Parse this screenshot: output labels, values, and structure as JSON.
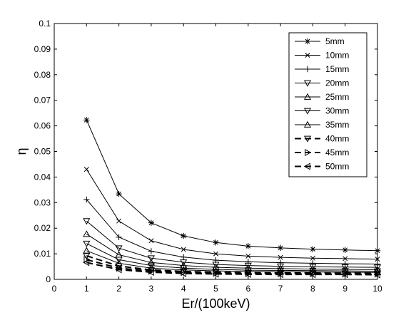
{
  "chart_data": {
    "type": "line",
    "xlabel": "Er/(100keV)",
    "ylabel": "η",
    "xlim": [
      0,
      10
    ],
    "ylim": [
      0,
      0.1
    ],
    "xticks": [
      "0",
      "1",
      "2",
      "3",
      "4",
      "5",
      "6",
      "7",
      "8",
      "9",
      "10"
    ],
    "yticks": [
      "0",
      "0.01",
      "0.02",
      "0.03",
      "0.04",
      "0.05",
      "0.06",
      "0.07",
      "0.08",
      "0.09",
      "0.1"
    ],
    "grid": false,
    "legend_position": "top-right",
    "x": [
      1,
      2,
      3,
      4,
      5,
      6,
      7,
      8,
      9,
      10
    ],
    "series": [
      {
        "name": "5mm",
        "marker": "asterisk",
        "values": [
          0.0623,
          0.0334,
          0.0221,
          0.017,
          0.0144,
          0.013,
          0.0123,
          0.0118,
          0.0115,
          0.0112
        ]
      },
      {
        "name": "10mm",
        "marker": "x",
        "values": [
          0.043,
          0.0228,
          0.0151,
          0.0117,
          0.01,
          0.0091,
          0.0086,
          0.0083,
          0.0081,
          0.0079
        ]
      },
      {
        "name": "15mm",
        "marker": "plus",
        "values": [
          0.0312,
          0.0165,
          0.011,
          0.0087,
          0.0075,
          0.0069,
          0.0065,
          0.0063,
          0.0061,
          0.006
        ]
      },
      {
        "name": "20mm",
        "marker": "triangle-down",
        "values": [
          0.0228,
          0.0122,
          0.0083,
          0.0067,
          0.0058,
          0.0054,
          0.0051,
          0.0049,
          0.0048,
          0.0047
        ]
      },
      {
        "name": "25mm",
        "marker": "triangle-up",
        "values": [
          0.0177,
          0.0096,
          0.0066,
          0.0054,
          0.0047,
          0.0044,
          0.0042,
          0.004,
          0.0039,
          0.0038
        ]
      },
      {
        "name": "30mm",
        "marker": "triangle-down",
        "values": [
          0.014,
          0.0077,
          0.0054,
          0.0044,
          0.0039,
          0.0036,
          0.0035,
          0.0034,
          0.0033,
          0.0032
        ]
      },
      {
        "name": "35mm",
        "marker": "triangle-up",
        "values": [
          0.0112,
          0.0063,
          0.0044,
          0.0037,
          0.0033,
          0.0031,
          0.003,
          0.0029,
          0.0028,
          0.0027
        ]
      },
      {
        "name": "40mm",
        "marker": "triangle-down",
        "values": [
          0.0092,
          0.0052,
          0.0037,
          0.0031,
          0.0028,
          0.0026,
          0.0025,
          0.0025,
          0.0024,
          0.0024
        ]
      },
      {
        "name": "45mm",
        "marker": "triangle-right",
        "values": [
          0.0077,
          0.0044,
          0.0032,
          0.0027,
          0.0024,
          0.0023,
          0.0022,
          0.0022,
          0.0021,
          0.0021
        ]
      },
      {
        "name": "50mm",
        "marker": "triangle-left",
        "values": [
          0.0066,
          0.0038,
          0.0028,
          0.0023,
          0.0021,
          0.002,
          0.0019,
          0.0019,
          0.0019,
          0.0018
        ]
      }
    ],
    "colors": {
      "line": "#000000",
      "background": "#ffffff"
    }
  }
}
